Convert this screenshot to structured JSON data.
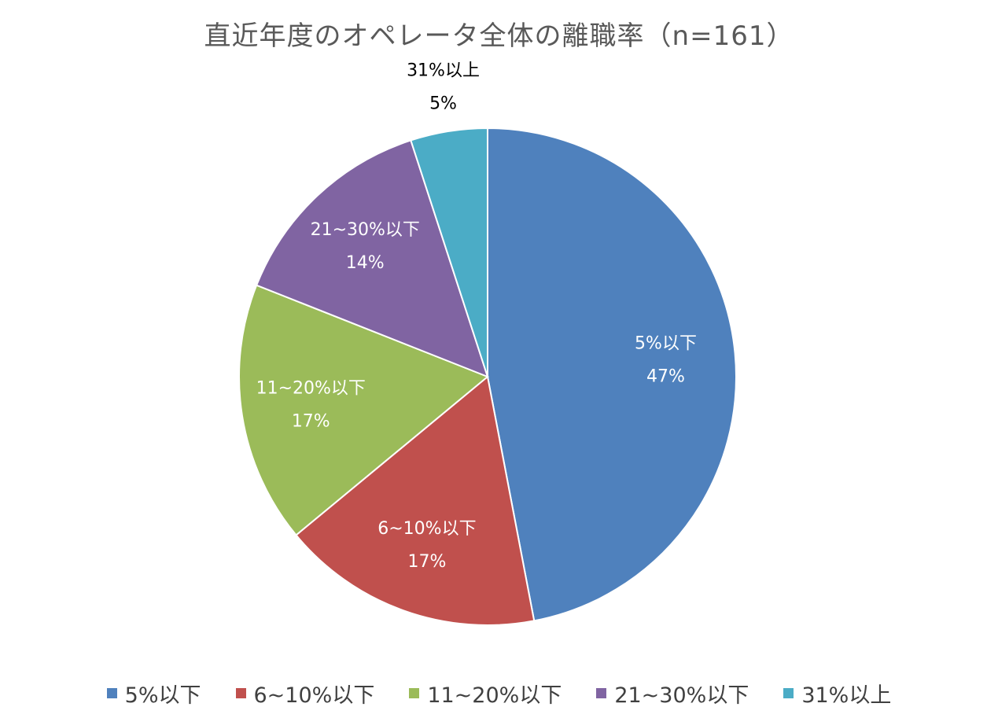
{
  "chart_data": {
    "type": "pie",
    "title": "直近年度のオペレータ全体の離職率（n=161）",
    "categories": [
      "5%以下",
      "6~10%以下",
      "11~20%以下",
      "21~30%以下",
      "31%以上"
    ],
    "values": [
      47,
      17,
      17,
      14,
      5
    ],
    "data_labels": [
      {
        "category": "5%以下",
        "percent": "47%"
      },
      {
        "category": "6~10%以下",
        "percent": "17%"
      },
      {
        "category": "11~20%以下",
        "percent": "17%"
      },
      {
        "category": "21~30%以下",
        "percent": "14%"
      },
      {
        "category": "31%以上",
        "percent": "5%"
      }
    ],
    "colors": [
      "#4f81bd",
      "#c0504d",
      "#9bbb59",
      "#8064a2",
      "#4bacc6"
    ],
    "label_colors": [
      "#ffffff",
      "#ffffff",
      "#ffffff",
      "#ffffff",
      "#000000"
    ],
    "legend_position": "bottom",
    "start_angle_deg": 0,
    "direction": "clockwise"
  }
}
